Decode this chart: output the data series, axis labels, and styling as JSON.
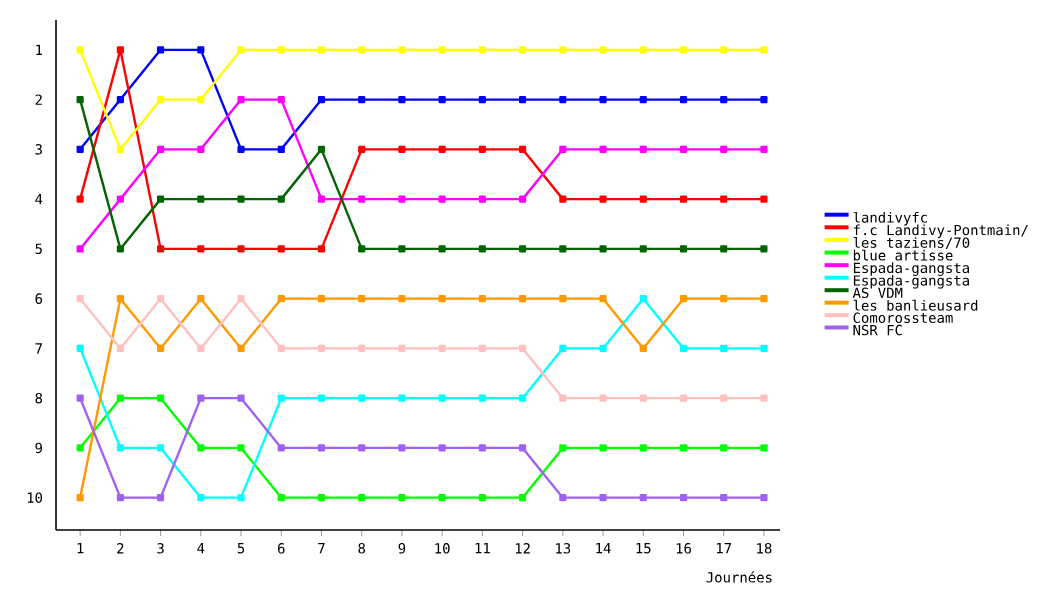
{
  "chart_data": {
    "type": "line",
    "xlabel": "Journées",
    "x": [
      1,
      2,
      3,
      4,
      5,
      6,
      7,
      8,
      9,
      10,
      11,
      12,
      13,
      14,
      15,
      16,
      17,
      18
    ],
    "xlim": [
      0.4,
      18.4
    ],
    "ylim": [
      10.65,
      0.4
    ],
    "xticks": [
      1,
      2,
      3,
      4,
      5,
      6,
      7,
      8,
      9,
      10,
      11,
      12,
      13,
      14,
      15,
      16,
      17,
      18
    ],
    "yticks": [
      1,
      2,
      3,
      4,
      5,
      6,
      7,
      8,
      9,
      10
    ],
    "grid": false,
    "legend": "right",
    "marker": "square",
    "line_style": "solid",
    "series": [
      {
        "name": "landivyfc",
        "color": "#0000ff",
        "values": [
          3,
          2,
          1,
          1,
          3,
          3,
          2,
          2,
          2,
          2,
          2,
          2,
          2,
          2,
          2,
          2,
          2,
          2
        ]
      },
      {
        "name": "f.c Landivy-Pontmain/",
        "color": "#ff0000",
        "values": [
          4,
          1,
          5,
          5,
          5,
          5,
          5,
          3,
          3,
          3,
          3,
          3,
          4,
          4,
          4,
          4,
          4,
          4
        ]
      },
      {
        "name": "les taziens/70",
        "color": "#ffff00",
        "values": [
          1,
          3,
          2,
          2,
          1,
          1,
          1,
          1,
          1,
          1,
          1,
          1,
          1,
          1,
          1,
          1,
          1,
          1
        ]
      },
      {
        "name": "blue artisse",
        "color": "#00ff00",
        "values": [
          9,
          8,
          8,
          9,
          9,
          10,
          10,
          10,
          10,
          10,
          10,
          10,
          9,
          9,
          9,
          9,
          9,
          9
        ]
      },
      {
        "name": "Espada-gangsta",
        "color": "#ff00ff",
        "values": [
          5,
          4,
          3,
          3,
          2,
          2,
          4,
          4,
          4,
          4,
          4,
          4,
          3,
          3,
          3,
          3,
          3,
          3
        ]
      },
      {
        "name": "Espada-gangsta",
        "color": "#00ffff",
        "values": [
          7,
          9,
          9,
          10,
          10,
          8,
          8,
          8,
          8,
          8,
          8,
          8,
          7,
          7,
          6,
          7,
          7,
          7
        ]
      },
      {
        "name": "AS VDM",
        "color": "#006400",
        "values": [
          2,
          5,
          4,
          4,
          4,
          4,
          3,
          5,
          5,
          5,
          5,
          5,
          5,
          5,
          5,
          5,
          5,
          5
        ]
      },
      {
        "name": "les banlieusard",
        "color": "#ff9900",
        "values": [
          10,
          6,
          7,
          6,
          7,
          6,
          6,
          6,
          6,
          6,
          6,
          6,
          6,
          6,
          7,
          6,
          6,
          6
        ]
      },
      {
        "name": "Comorossteam",
        "color": "#ffc0c0",
        "values": [
          6,
          7,
          6,
          7,
          6,
          7,
          7,
          7,
          7,
          7,
          7,
          7,
          8,
          8,
          8,
          8,
          8,
          8
        ]
      },
      {
        "name": "NSR FC",
        "color": "#a060f0",
        "values": [
          8,
          10,
          10,
          8,
          8,
          9,
          9,
          9,
          9,
          9,
          9,
          9,
          10,
          10,
          10,
          10,
          10,
          10
        ]
      }
    ]
  }
}
